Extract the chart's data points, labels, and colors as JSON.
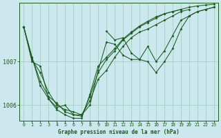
{
  "title": "Graphe pression niveau de la mer (hPa)",
  "background_color": "#cce8ee",
  "grid_color": "#99ccbb",
  "line_color": "#1a5c1a",
  "marker_color": "#1a5c1a",
  "xlim": [
    -0.5,
    23.5
  ],
  "ylim": [
    1005.65,
    1008.35
  ],
  "yticks": [
    1006,
    1007
  ],
  "xticks": [
    0,
    1,
    2,
    3,
    4,
    5,
    6,
    7,
    8,
    9,
    10,
    11,
    12,
    13,
    14,
    15,
    16,
    17,
    18,
    19,
    20,
    21,
    22,
    23
  ],
  "series": [
    {
      "x": [
        0,
        1,
        2,
        3,
        4,
        5,
        6,
        7,
        8,
        9,
        10,
        11,
        12,
        13,
        14,
        15,
        16,
        17,
        18,
        19
      ],
      "y": [
        1007.8,
        1007.1,
        1006.55,
        1006.2,
        1006.05,
        1005.85,
        1005.78,
        1005.75,
        1006.2,
        1006.75,
        1007.05,
        1007.25,
        1007.5,
        1007.65,
        1007.8,
        1007.9,
        1008.0,
        1008.1,
        1008.15,
        1008.2
      ]
    },
    {
      "x": [
        0,
        1,
        2,
        3,
        4,
        5,
        6,
        7,
        8,
        9,
        10,
        11,
        12,
        13,
        14,
        15,
        16,
        17,
        18,
        19,
        20
      ],
      "y": [
        1007.8,
        1007.05,
        1006.75,
        1006.3,
        1006.0,
        1005.9,
        1005.85,
        1005.78,
        1006.1,
        1006.6,
        1006.8,
        1007.1,
        1007.35,
        1007.55,
        1007.68,
        1007.75,
        1007.85,
        1007.95,
        1008.05,
        1008.15,
        1008.2
      ]
    },
    {
      "x": [
        0,
        1,
        2,
        3,
        4,
        5,
        6,
        7,
        8,
        9,
        10,
        11,
        12,
        13,
        14,
        15,
        16,
        17,
        18,
        19,
        20,
        21,
        22,
        23
      ],
      "y": [
        1007.8,
        1007.0,
        1006.9,
        1006.15,
        1005.95,
        1006.0,
        1005.78,
        1005.78,
        1006.0,
        1006.8,
        1007.45,
        1007.4,
        1007.15,
        1007.05,
        1007.05,
        1007.35,
        1007.0,
        1007.25,
        1007.6,
        1007.95,
        1008.05,
        1008.15,
        1008.2,
        1008.25
      ]
    },
    {
      "x": [
        10,
        11,
        12,
        13,
        14,
        15,
        16,
        17,
        18,
        19,
        20,
        21,
        22,
        23
      ],
      "y": [
        1007.7,
        1007.5,
        1007.55,
        1007.2,
        1007.05,
        1007.0,
        1006.75,
        1007.0,
        1007.3,
        1007.75,
        1008.05,
        1008.15,
        1008.2,
        1008.25
      ]
    },
    {
      "x": [
        0,
        1,
        2,
        3,
        4,
        5,
        6,
        7,
        8,
        9,
        10,
        11,
        12,
        13,
        14,
        15,
        16,
        17,
        18,
        19,
        20,
        21,
        22,
        23
      ],
      "y": [
        1007.8,
        1007.1,
        1006.45,
        1006.15,
        1005.9,
        1005.78,
        1005.7,
        1005.7,
        1006.25,
        1006.9,
        1007.1,
        1007.3,
        1007.52,
        1007.68,
        1007.82,
        1007.93,
        1008.03,
        1008.1,
        1008.15,
        1008.2,
        1008.25,
        1008.28,
        1008.3,
        1008.32
      ]
    }
  ]
}
